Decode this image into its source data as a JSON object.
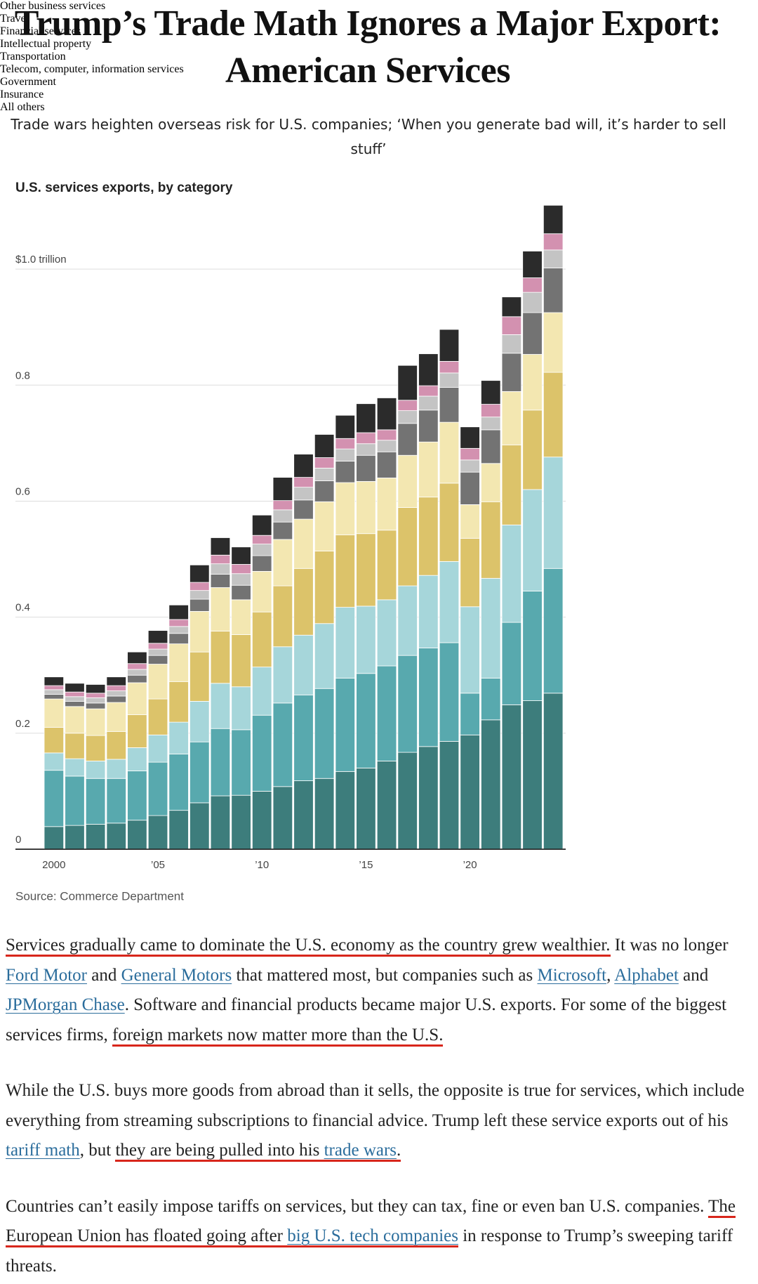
{
  "header": {
    "title": "Trump’s Trade Math Ignores a Major Export: American Services",
    "subtitle": "Trade wars heighten overseas risk for U.S. companies; ‘When you generate bad will, it’s harder to sell stuff’"
  },
  "chart_data": {
    "type": "bar",
    "stacked": true,
    "title": "U.S. services exports, by category",
    "source": "Source: Commerce Department",
    "categories": [
      "2000",
      null,
      null,
      null,
      null,
      "’05",
      null,
      null,
      null,
      null,
      "’10",
      null,
      null,
      null,
      null,
      "’15",
      null,
      null,
      null,
      null,
      "’20",
      null,
      null,
      null,
      null
    ],
    "ylim": [
      0,
      1.12
    ],
    "yticks": [
      0,
      0.2,
      0.4,
      0.6,
      0.8,
      {
        "value": 1.0,
        "label": "$1.0 trillion"
      }
    ],
    "grid": true,
    "series": [
      {
        "name": "Other business services",
        "color": "#3d7d7c",
        "values": [
          0.039,
          0.041,
          0.043,
          0.045,
          0.05,
          0.058,
          0.067,
          0.08,
          0.092,
          0.093,
          0.1,
          0.108,
          0.118,
          0.122,
          0.134,
          0.14,
          0.152,
          0.167,
          0.177,
          0.186,
          0.197,
          0.223,
          0.249,
          0.256,
          0.269
        ]
      },
      {
        "name": "Travel",
        "color": "#58a9ae",
        "values": [
          0.097,
          0.085,
          0.079,
          0.077,
          0.085,
          0.092,
          0.097,
          0.105,
          0.116,
          0.113,
          0.131,
          0.144,
          0.148,
          0.155,
          0.161,
          0.163,
          0.164,
          0.167,
          0.17,
          0.17,
          0.072,
          0.072,
          0.142,
          0.189,
          0.215
        ]
      },
      {
        "name": "Financial services",
        "color": "#a6d6da",
        "values": [
          0.03,
          0.03,
          0.03,
          0.033,
          0.04,
          0.047,
          0.055,
          0.07,
          0.078,
          0.074,
          0.083,
          0.097,
          0.103,
          0.112,
          0.122,
          0.116,
          0.114,
          0.12,
          0.125,
          0.14,
          0.149,
          0.172,
          0.168,
          0.175,
          0.192
        ]
      },
      {
        "name": "Intellectual property",
        "color": "#dcc36a",
        "values": [
          0.044,
          0.044,
          0.044,
          0.048,
          0.057,
          0.062,
          0.07,
          0.085,
          0.09,
          0.09,
          0.095,
          0.105,
          0.115,
          0.125,
          0.125,
          0.125,
          0.12,
          0.135,
          0.135,
          0.135,
          0.118,
          0.132,
          0.138,
          0.137,
          0.146
        ]
      },
      {
        "name": "Transportation",
        "color": "#f3e7b1",
        "values": [
          0.049,
          0.046,
          0.046,
          0.05,
          0.055,
          0.06,
          0.065,
          0.07,
          0.075,
          0.06,
          0.07,
          0.08,
          0.085,
          0.085,
          0.09,
          0.09,
          0.09,
          0.09,
          0.095,
          0.105,
          0.058,
          0.066,
          0.092,
          0.096,
          0.103
        ]
      },
      {
        "name": "Telecom, computer, information services",
        "color": "#737373",
        "values": [
          0.008,
          0.009,
          0.01,
          0.011,
          0.013,
          0.015,
          0.018,
          0.021,
          0.023,
          0.025,
          0.027,
          0.03,
          0.033,
          0.036,
          0.037,
          0.045,
          0.045,
          0.055,
          0.055,
          0.06,
          0.056,
          0.058,
          0.066,
          0.072,
          0.077
        ]
      },
      {
        "name": "Government",
        "color": "#c4c4c4",
        "values": [
          0.008,
          0.008,
          0.009,
          0.009,
          0.01,
          0.011,
          0.012,
          0.015,
          0.018,
          0.02,
          0.02,
          0.021,
          0.022,
          0.022,
          0.021,
          0.02,
          0.02,
          0.022,
          0.024,
          0.025,
          0.021,
          0.022,
          0.032,
          0.035,
          0.031
        ]
      },
      {
        "name": "Insurance",
        "color": "#d391b0",
        "values": [
          0.007,
          0.008,
          0.008,
          0.009,
          0.01,
          0.01,
          0.012,
          0.014,
          0.015,
          0.016,
          0.015,
          0.016,
          0.017,
          0.018,
          0.018,
          0.019,
          0.018,
          0.018,
          0.018,
          0.02,
          0.02,
          0.022,
          0.031,
          0.025,
          0.028
        ]
      },
      {
        "name": "All others",
        "color": "#2b2b2b",
        "values": [
          0.015,
          0.015,
          0.015,
          0.015,
          0.02,
          0.022,
          0.025,
          0.03,
          0.03,
          0.03,
          0.035,
          0.04,
          0.04,
          0.04,
          0.04,
          0.05,
          0.055,
          0.06,
          0.055,
          0.055,
          0.037,
          0.041,
          0.034,
          0.046,
          0.049
        ]
      }
    ]
  },
  "article": {
    "paragraphs": [
      [
        {
          "text": "Services gradually came to dominate the U.S. economy as the country grew wealthier.",
          "highlight": true
        },
        {
          "text": " It was no longer "
        },
        {
          "text": "Ford Motor",
          "link": true
        },
        {
          "text": " and "
        },
        {
          "text": "General Motors",
          "link": true
        },
        {
          "text": " that mattered most, but companies such as "
        },
        {
          "text": "Microsoft",
          "link": true
        },
        {
          "text": ", "
        },
        {
          "text": "Alphabet",
          "link": true
        },
        {
          "text": " and "
        },
        {
          "text": "JPMorgan Chase",
          "link": true
        },
        {
          "text": ". Software and financial products became major U.S. exports. For some of the biggest services firms, "
        },
        {
          "text": "foreign markets now matter more than the U.S.",
          "highlight": true
        }
      ],
      [
        {
          "text": "While the U.S. buys more goods from abroad than it sells, the opposite is true for services, which include everything from streaming subscriptions to financial advice. Trump left these service exports out of his "
        },
        {
          "text": "tariff math",
          "link": true
        },
        {
          "text": ", but "
        },
        {
          "text": "they are being pulled into his ",
          "highlight": true
        },
        {
          "text": "trade wars",
          "link": true,
          "highlight": true
        },
        {
          "text": ".",
          "highlight": true
        }
      ],
      [
        {
          "text": "Countries can’t easily impose tariffs on services, but they can tax, fine or even ban U.S. companies. "
        },
        {
          "text": "The European Union has floated going after ",
          "highlight": true
        },
        {
          "text": "big U.S. tech companies",
          "link": true,
          "highlight": true
        },
        {
          "text": " in response to Trump’s sweeping tariff threats."
        }
      ]
    ]
  }
}
